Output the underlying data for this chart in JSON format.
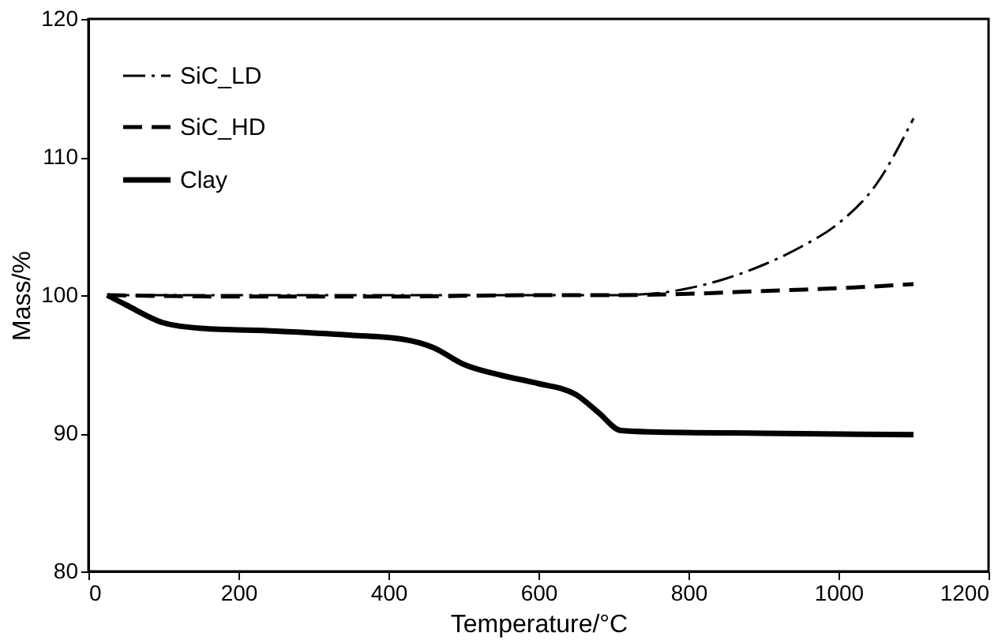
{
  "chart_data": {
    "type": "line",
    "xlabel": "Temperature/°C",
    "ylabel": "Mass/%",
    "xlim": [
      0,
      1200
    ],
    "xticks": [
      0,
      200,
      400,
      600,
      800,
      1000,
      1200
    ],
    "ylim": [
      80,
      120
    ],
    "yticks": [
      80,
      90,
      100,
      110,
      120
    ],
    "grid": false,
    "legend": "top left",
    "series": [
      {
        "name": "SiC_LD",
        "color": "#000000",
        "line_style": "dashdot",
        "x": [
          25,
          200,
          400,
          600,
          700,
          750,
          800,
          850,
          900,
          950,
          1000,
          1050,
          1100
        ],
        "values": [
          100,
          100,
          100,
          100,
          100,
          100.1,
          100.5,
          101.2,
          102.2,
          103.5,
          105.2,
          108,
          112.8
        ]
      },
      {
        "name": "SiC_HD",
        "color": "#000000",
        "line_style": "dashed",
        "x": [
          25,
          200,
          400,
          600,
          700,
          800,
          900,
          1000,
          1100
        ],
        "values": [
          100,
          99.9,
          99.9,
          100,
          100,
          100.1,
          100.3,
          100.5,
          100.8
        ]
      },
      {
        "name": "Clay",
        "color": "#000000",
        "line_style": "solid",
        "x": [
          25,
          50,
          100,
          150,
          250,
          350,
          420,
          460,
          500,
          550,
          600,
          650,
          680,
          710,
          750,
          900,
          1100
        ],
        "values": [
          100,
          99.3,
          98,
          97.6,
          97.4,
          97.1,
          96.8,
          96.2,
          95,
          94.2,
          93.6,
          92.8,
          91.5,
          90.2,
          90.1,
          90,
          89.9
        ]
      }
    ]
  }
}
